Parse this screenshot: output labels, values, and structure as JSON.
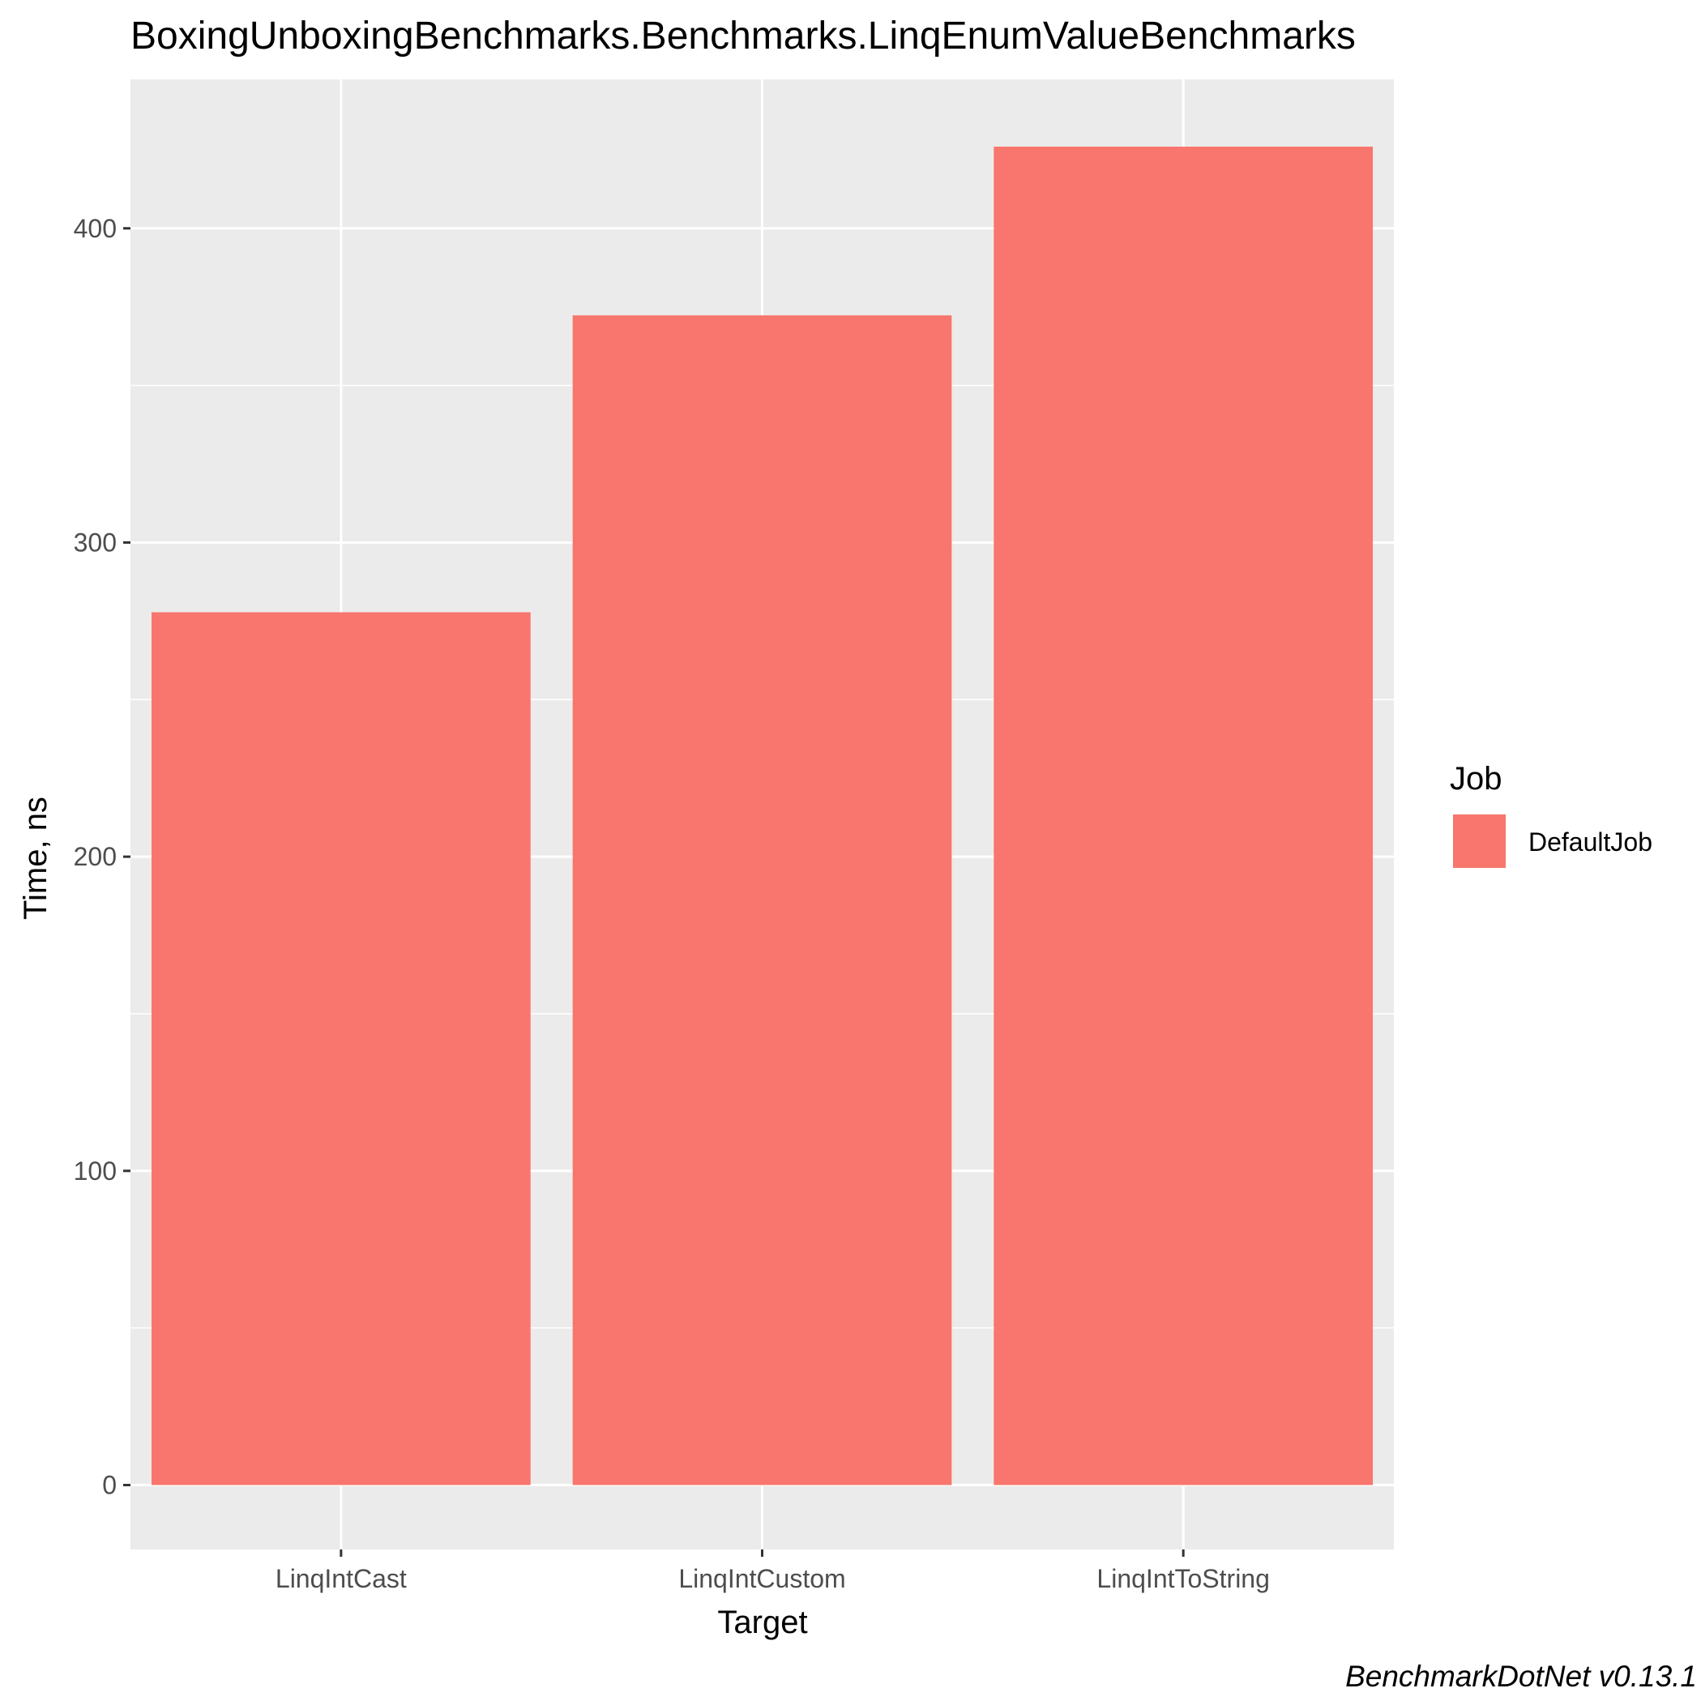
{
  "chart_data": {
    "type": "bar",
    "title": "BoxingUnboxingBenchmarks.Benchmarks.LinqEnumValueBenchmarks",
    "xlabel": "Target",
    "ylabel": "Time, ns",
    "categories": [
      "LinqIntCast",
      "LinqIntCustom",
      "LinqIntToString"
    ],
    "series": [
      {
        "name": "DefaultJob",
        "values": [
          277.8,
          372.3,
          426.0
        ]
      }
    ],
    "ylim": [
      -20.5,
      447.4
    ],
    "yticks": [
      0,
      100,
      200,
      300,
      400
    ],
    "ytick_labels": [
      "0",
      "100",
      "200",
      "300",
      "400"
    ],
    "grid": true,
    "legend": {
      "title": "Job",
      "position": "right",
      "entries": [
        "DefaultJob"
      ]
    },
    "caption": "BenchmarkDotNet v0.13.1"
  },
  "colors": {
    "bar_fill": "#F8766D",
    "panel_background": "#EBEBEB",
    "grid": "#FFFFFF",
    "tick_text": "#4D4D4D",
    "tick_mark": "#333333"
  }
}
